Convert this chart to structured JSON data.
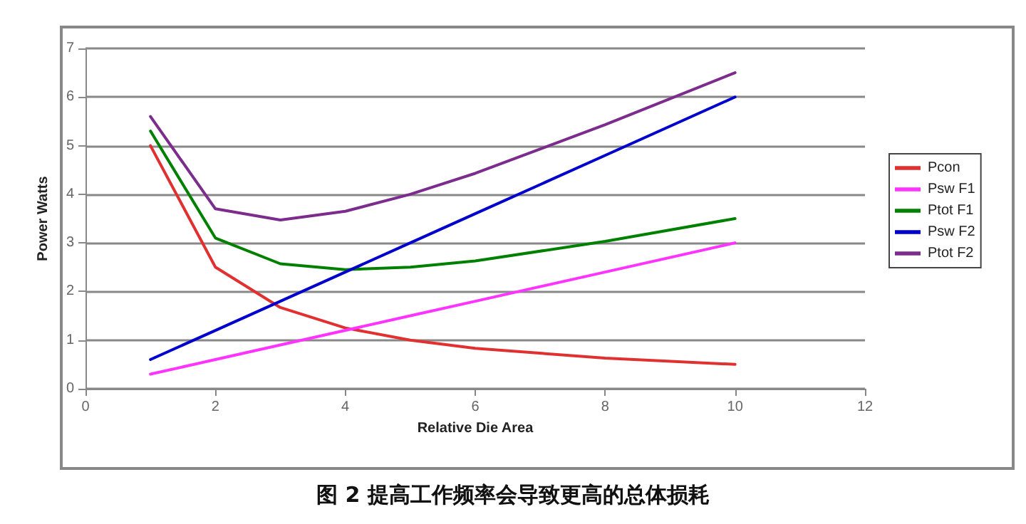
{
  "chart_data": {
    "type": "line",
    "title": "图 2 提高工作频率会导致更高的总体损耗",
    "xlabel": "Relative Die Area",
    "ylabel": "Power Watts",
    "x": [
      1,
      2,
      3,
      4,
      5,
      6,
      8,
      10
    ],
    "series": [
      {
        "name": "Pcon",
        "color": "#e03030",
        "values": [
          5,
          2.5,
          1.67,
          1.25,
          1,
          0.83,
          0.63,
          0.5
        ]
      },
      {
        "name": "Psw F1",
        "color": "#ff33ff",
        "values": [
          0.3,
          0.6,
          0.9,
          1.2,
          1.5,
          1.8,
          2.4,
          3
        ]
      },
      {
        "name": "Ptot F1",
        "color": "#008000",
        "values": [
          5.3,
          3.1,
          2.57,
          2.45,
          2.5,
          2.63,
          3.03,
          3.5
        ]
      },
      {
        "name": "Psw F2",
        "color": "#0000cc",
        "values": [
          0.6,
          1.2,
          1.8,
          2.4,
          3,
          3.6,
          4.8,
          6
        ]
      },
      {
        "name": "Ptot F2",
        "color": "#7b2c8c",
        "values": [
          5.6,
          3.7,
          3.47,
          3.65,
          4,
          4.43,
          5.43,
          6.5
        ]
      }
    ],
    "xlim": [
      0,
      12
    ],
    "xticks": [
      0,
      2,
      4,
      6,
      8,
      10,
      12
    ],
    "ylim": [
      0,
      7
    ],
    "yticks": [
      0,
      1,
      2,
      3,
      4,
      5,
      6,
      7
    ],
    "grid": "y",
    "legend": "right",
    "marker": "none",
    "line_style": "solid"
  }
}
